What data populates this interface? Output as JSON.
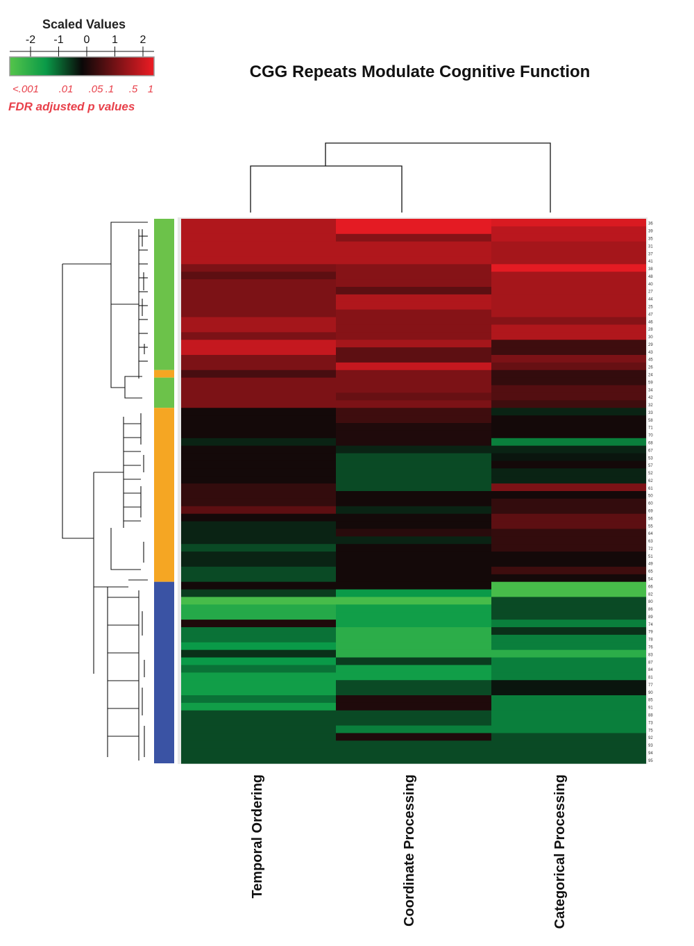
{
  "chart_data": {
    "type": "heatmap",
    "title": "CGG Repeats Modulate Cognitive Function",
    "columns": [
      "Temporal Ordering",
      "Coordinate Processing",
      "Categorical Processing"
    ],
    "color_scale": {
      "title": "Scaled Values",
      "ticks": [
        "-2",
        "-1",
        "0",
        "1",
        "2"
      ],
      "p_labels": [
        "<.001",
        ".01",
        ".05",
        ".1",
        ".5",
        "1"
      ],
      "p_axis_label": "FDR adjusted p values",
      "min": -2.2,
      "max": 2.2,
      "low_color": "#55c44a",
      "mid_low_color": "#0a9a48",
      "mid_color": "#0a0808",
      "high_color": "#ee1c24"
    },
    "group_colors": {
      "green": "#6cc24a",
      "orange": "#f5a623",
      "blue": "#3a53a4"
    },
    "row_groups": [
      {
        "group": "green",
        "rows": 20
      },
      {
        "group": "orange",
        "rows": 1
      },
      {
        "group": "green",
        "rows": 4
      },
      {
        "group": "orange",
        "rows": 23
      },
      {
        "group": "blue",
        "rows": 24
      }
    ],
    "row_labels": [
      "36",
      "39",
      "35",
      "31",
      "37",
      "41",
      "38",
      "48",
      "40",
      "27",
      "44",
      "25",
      "47",
      "46",
      "28",
      "30",
      "29",
      "43",
      "45",
      "26",
      "24",
      "59",
      "34",
      "42",
      "32",
      "33",
      "58",
      "71",
      "70",
      "68",
      "67",
      "53",
      "57",
      "52",
      "62",
      "61",
      "50",
      "60",
      "69",
      "56",
      "55",
      "64",
      "63",
      "72",
      "51",
      "49",
      "65",
      "54",
      "66",
      "82",
      "80",
      "86",
      "89",
      "74",
      "79",
      "78",
      "76",
      "83",
      "87",
      "84",
      "81",
      "77",
      "90",
      "85",
      "91",
      "88",
      "73",
      "75",
      "92",
      "93",
      "94",
      "95"
    ],
    "values": [
      [
        1.6,
        2.1,
        2.0
      ],
      [
        1.6,
        2.1,
        1.7
      ],
      [
        1.6,
        1.2,
        1.7
      ],
      [
        1.6,
        1.6,
        1.5
      ],
      [
        1.6,
        1.6,
        1.5
      ],
      [
        1.6,
        1.6,
        1.5
      ],
      [
        1.1,
        1.2,
        2.1
      ],
      [
        0.8,
        1.2,
        1.5
      ],
      [
        1.1,
        1.2,
        1.5
      ],
      [
        1.1,
        0.8,
        1.5
      ],
      [
        1.1,
        1.6,
        1.5
      ],
      [
        1.1,
        1.6,
        1.5
      ],
      [
        1.1,
        1.2,
        1.5
      ],
      [
        1.5,
        1.2,
        1.2
      ],
      [
        1.5,
        1.2,
        1.6
      ],
      [
        1.1,
        1.2,
        1.6
      ],
      [
        1.8,
        1.5,
        0.5
      ],
      [
        1.8,
        0.8,
        0.5
      ],
      [
        1.1,
        0.8,
        1.1
      ],
      [
        1.1,
        1.8,
        0.9
      ],
      [
        0.6,
        1.1,
        0.4
      ],
      [
        1.1,
        1.1,
        0.4
      ],
      [
        1.1,
        1.1,
        0.7
      ],
      [
        1.1,
        0.9,
        0.7
      ],
      [
        1.1,
        1.1,
        0.5
      ],
      [
        0.1,
        0.5,
        -0.2
      ],
      [
        0.1,
        0.5,
        0.1
      ],
      [
        0.1,
        0.2,
        0.1
      ],
      [
        0.1,
        0.2,
        0.1
      ],
      [
        -0.2,
        0.2,
        -0.9
      ],
      [
        0.1,
        -0.2,
        -0.2
      ],
      [
        0.1,
        -0.5,
        -0.1
      ],
      [
        0.1,
        -0.5,
        0.1
      ],
      [
        0.1,
        -0.5,
        -0.2
      ],
      [
        0.1,
        -0.5,
        -0.2
      ],
      [
        0.4,
        -0.5,
        1.1
      ],
      [
        0.4,
        0.1,
        0.1
      ],
      [
        0.4,
        0.1,
        0.4
      ],
      [
        0.8,
        -0.2,
        0.4
      ],
      [
        0.1,
        0.1,
        0.8
      ],
      [
        -0.2,
        0.1,
        0.8
      ],
      [
        -0.2,
        0.3,
        0.4
      ],
      [
        -0.2,
        -0.2,
        0.4
      ],
      [
        -0.5,
        0.1,
        0.4
      ],
      [
        -0.2,
        0.1,
        0.1
      ],
      [
        -0.2,
        0.1,
        0.1
      ],
      [
        -0.5,
        0.1,
        0.5
      ],
      [
        -0.5,
        0.1,
        0.1
      ],
      [
        0.1,
        0.1,
        -2.0
      ],
      [
        -0.4,
        -1.1,
        -2.0
      ],
      [
        -2.0,
        -2.0,
        -0.5
      ],
      [
        -1.5,
        -1.2,
        -0.5
      ],
      [
        -1.5,
        -1.2,
        -0.5
      ],
      [
        0.2,
        -1.2,
        -0.9
      ],
      [
        -0.8,
        -1.6,
        -0.3
      ],
      [
        -0.8,
        -1.6,
        -0.9
      ],
      [
        -1.1,
        -1.6,
        -0.9
      ],
      [
        -0.3,
        -1.6,
        -1.6
      ],
      [
        -1.1,
        -0.4,
        -0.9
      ],
      [
        -0.8,
        -1.2,
        -0.9
      ],
      [
        -1.2,
        -1.2,
        -0.9
      ],
      [
        -1.2,
        -0.5,
        -0.1
      ],
      [
        -1.2,
        -0.5,
        -0.1
      ],
      [
        -0.8,
        0.2,
        -0.9
      ],
      [
        -1.2,
        0.2,
        -0.9
      ],
      [
        -0.5,
        -0.5,
        -0.9
      ],
      [
        -0.5,
        -0.5,
        -0.9
      ],
      [
        -0.5,
        -0.9,
        -0.9
      ],
      [
        -0.5,
        0.2,
        -0.5
      ],
      [
        -0.5,
        -0.5,
        -0.5
      ],
      [
        -0.5,
        -0.5,
        -0.5
      ],
      [
        -0.5,
        -0.5,
        -0.5
      ]
    ]
  }
}
